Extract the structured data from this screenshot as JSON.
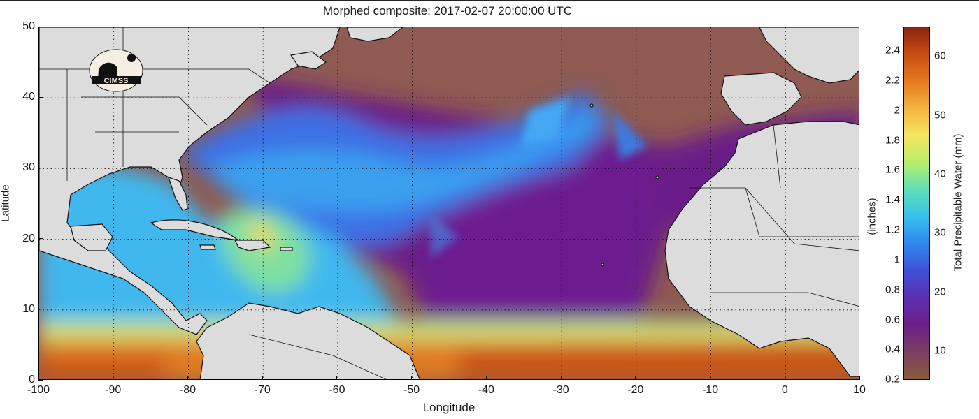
{
  "title": "Morphed composite: 2017-02-07 20:00:00 UTC",
  "logo_text": "CIMSS",
  "x_axis": {
    "label": "Longitude",
    "ticks": [
      "-100",
      "-90",
      "-80",
      "-70",
      "-60",
      "-50",
      "-40",
      "-30",
      "-20",
      "-10",
      "0",
      "10"
    ],
    "range": [
      -100,
      10
    ]
  },
  "y_axis": {
    "label": "Latitude",
    "ticks": [
      "0",
      "10",
      "20",
      "30",
      "40",
      "50"
    ],
    "range": [
      0,
      50
    ]
  },
  "colorbar": {
    "left_label": "(inches)",
    "right_label": "Total Precipitable Water (mm)",
    "inch_ticks": [
      "0.2",
      "0.4",
      "0.6",
      "0.8",
      "1",
      "1.2",
      "1.4",
      "1.6",
      "1.8",
      "2",
      "2.2",
      "2.4"
    ],
    "mm_ticks": [
      "10",
      "20",
      "30",
      "40",
      "50",
      "60"
    ],
    "range_mm": [
      5,
      65
    ],
    "colors": [
      "#8c5a3c",
      "#7a3f60",
      "#6d1f8a",
      "#5b2fb0",
      "#3f4fd8",
      "#2e86ee",
      "#38c0ee",
      "#5fe0b8",
      "#b8ee6a",
      "#f4e660",
      "#f5b440",
      "#e47a20",
      "#c94e12",
      "#8a2410"
    ]
  },
  "map": {
    "ocean_base": "#8e5a52",
    "land_color": "#dcdcdc",
    "coast_color": "#111111",
    "grid": "dotted"
  }
}
